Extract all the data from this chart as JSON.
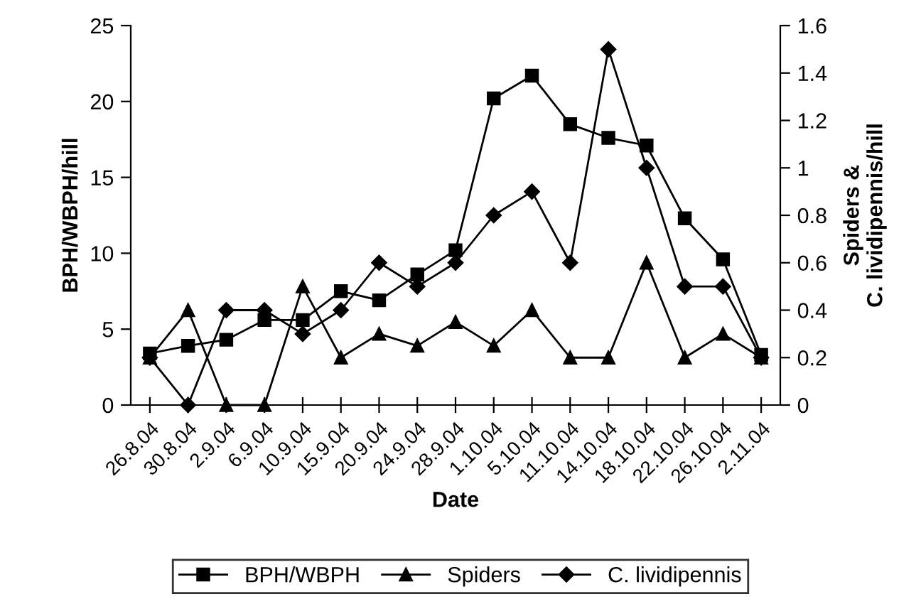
{
  "chart_data": {
    "type": "line",
    "xlabel": "Date",
    "ylabel": "BPH/WBPH/hill",
    "y2label": "Spiders &\nC. lividipennis/hill",
    "categories": [
      "26.8.04",
      "30.8.04",
      "2.9.04",
      "6.9.04",
      "10.9.04",
      "15.9.04",
      "20.9.04",
      "24.9.04",
      "28.9.04",
      "1.10.04",
      "5.10.04",
      "11.10.04",
      "14.10.04",
      "18.10.04",
      "22.10.04",
      "26.10.04",
      "2.11.04"
    ],
    "series": [
      {
        "name": "BPH/WBPH",
        "color": "#000000",
        "marker": "square",
        "values": [
          3.4,
          3.9,
          4.3,
          5.6,
          5.6,
          7.5,
          6.9,
          8.6,
          10.2,
          20.2,
          21.7,
          18.5,
          17.6,
          17.1,
          12.3,
          9.6,
          3.3
        ]
      },
      {
        "name": "Spiders",
        "color": "#000000",
        "marker": "triangle",
        "axis": "y2",
        "values": [
          0.2,
          0.4,
          0,
          0,
          0.5,
          0.2,
          0.3,
          0.25,
          0.35,
          0.25,
          0.4,
          0.2,
          0.2,
          0.6,
          0.2,
          0.3,
          0.2
        ]
      },
      {
        "name": "C. lividipennis",
        "color": "#000000",
        "marker": "diamond",
        "axis": "y2",
        "values": [
          0.2,
          0,
          0.4,
          0.4,
          0.3,
          0.4,
          0.6,
          0.5,
          0.6,
          0.8,
          0.9,
          0.6,
          1.5,
          1.0,
          0.5,
          0.5,
          0.2
        ]
      }
    ],
    "ylim": [
      0,
      25
    ],
    "yticks": [
      0,
      5,
      10,
      15,
      20,
      25
    ],
    "y2lim": [
      0,
      1.6
    ],
    "y2ticks": [
      0,
      0.2,
      0.4,
      0.6,
      0.8,
      1,
      1.2,
      1.4,
      1.6
    ],
    "legend": "bottom",
    "grid": false,
    "line_style": "solid"
  }
}
